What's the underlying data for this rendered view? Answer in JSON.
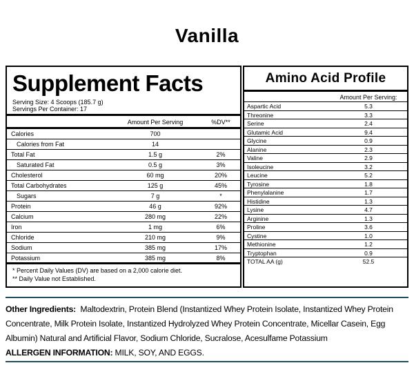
{
  "flavor": "Vanilla",
  "supplement_facts": {
    "title": "Supplement Facts",
    "serving_size": "Serving Size: 4 Scoops (185.7 g)",
    "servings_per_container": "Servings Per Container: 17",
    "col_amount": "Amount Per Serving",
    "col_dv": "%DV**",
    "rows": [
      {
        "name": "Calories",
        "amount": "700",
        "dv": "",
        "sub": false
      },
      {
        "name": "Calories from Fat",
        "amount": "14",
        "dv": "",
        "sub": true
      },
      {
        "name": "Total Fat",
        "amount": "1.5 g",
        "dv": "2%",
        "sub": false
      },
      {
        "name": "Saturated Fat",
        "amount": "0.5 g",
        "dv": "3%",
        "sub": true
      },
      {
        "name": "Cholesterol",
        "amount": "60 mg",
        "dv": "20%",
        "sub": false
      },
      {
        "name": "Total Carbohydrates",
        "amount": "125 g",
        "dv": "45%",
        "sub": false
      },
      {
        "name": "Sugars",
        "amount": "7 g",
        "dv": "*",
        "sub": true
      },
      {
        "name": "Protein",
        "amount": "46 g",
        "dv": "92%",
        "sub": false
      },
      {
        "name": "Calcium",
        "amount": "280 mg",
        "dv": "22%",
        "sub": false
      },
      {
        "name": "Iron",
        "amount": "1 mg",
        "dv": "6%",
        "sub": false
      },
      {
        "name": "Chloride",
        "amount": "210 mg",
        "dv": "9%",
        "sub": false
      },
      {
        "name": "Sodium",
        "amount": "385 mg",
        "dv": "17%",
        "sub": false
      },
      {
        "name": "Potassium",
        "amount": "385 mg",
        "dv": "8%",
        "sub": false
      }
    ],
    "footnote_1": "* Percent Daily Values (DV) are based on a 2,000 calorie diet.",
    "footnote_2": "** Daily Value not Established."
  },
  "amino": {
    "title": "Amino Acid Profile",
    "col_amount": "Amount Per Serving:",
    "rows": [
      {
        "name": "Aspartic Acid",
        "value": "5.3"
      },
      {
        "name": "Threonine",
        "value": "3.3"
      },
      {
        "name": "Serine",
        "value": "2.4"
      },
      {
        "name": "Glutamic Acid",
        "value": "9.4"
      },
      {
        "name": "Glycine",
        "value": "0.9"
      },
      {
        "name": "Alanine",
        "value": "2.3"
      },
      {
        "name": "Valine",
        "value": "2.9"
      },
      {
        "name": "Isoleucine",
        "value": "3.2"
      },
      {
        "name": "Leucine",
        "value": "5.2"
      },
      {
        "name": "Tyrosine",
        "value": "1.8"
      },
      {
        "name": "Phenylalanine",
        "value": "1.7"
      },
      {
        "name": "Histidine",
        "value": "1.3"
      },
      {
        "name": "Lysine",
        "value": "4.7"
      },
      {
        "name": "Arginine",
        "value": "1.3"
      },
      {
        "name": "Proline",
        "value": "3.6"
      },
      {
        "name": "Cystine",
        "value": "1.0"
      },
      {
        "name": "Methionine",
        "value": "1.2"
      },
      {
        "name": "Tryptophan",
        "value": "0.9"
      },
      {
        "name": "TOTAL AA (g)",
        "value": "52.5"
      }
    ]
  },
  "ingredients": {
    "label": "Other Ingredients:",
    "text": "Maltodextrin, Protein Blend (Instantized Whey Protein Isolate, Instantized Whey Protein Concentrate, Milk Protein Isolate, Instantized Hydrolyzed Whey Protein Concentrate, Micellar Casein, Egg Albumin) Natural and Artificial Flavor, Sodium Chloride, Sucralose, Acesulfame Potassium",
    "allergen_label": "ALLERGEN INFORMATION:",
    "allergen_text": "MILK, SOY, AND EGGS."
  }
}
